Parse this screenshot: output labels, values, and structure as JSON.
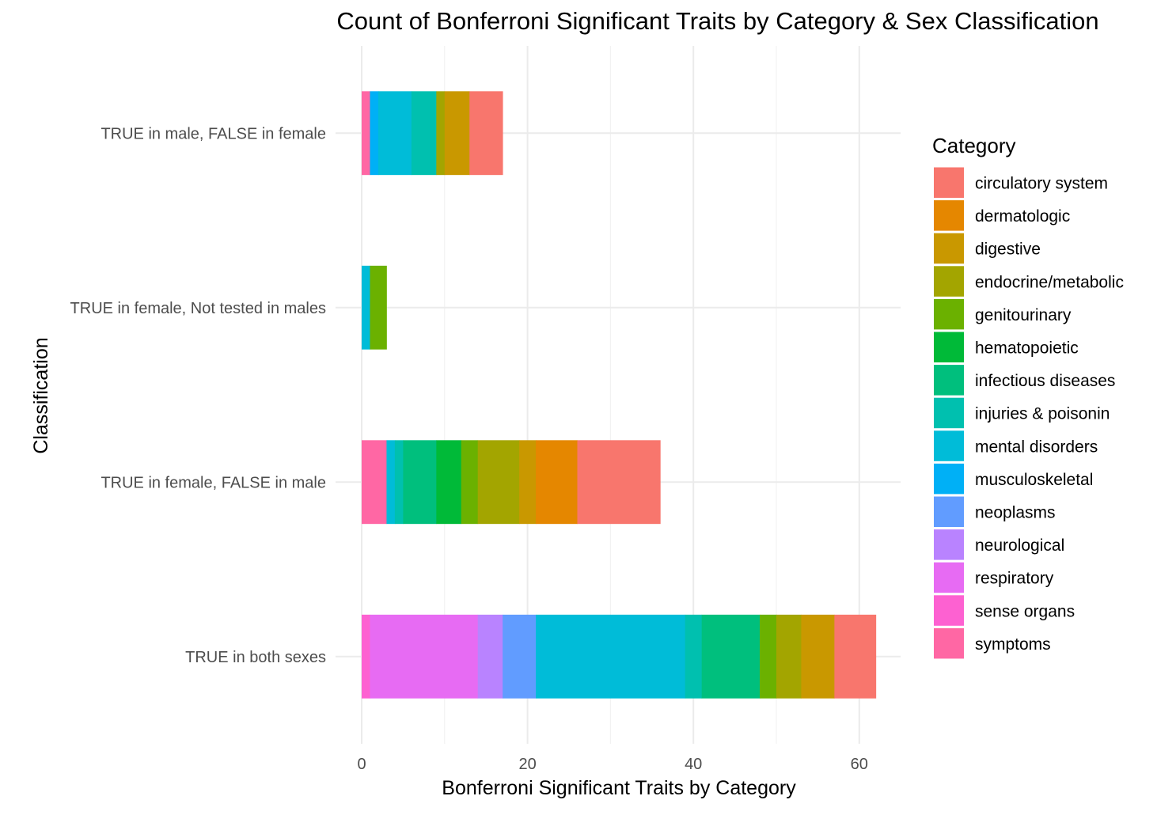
{
  "chart_data": {
    "type": "bar",
    "orientation": "horizontal",
    "stacked": true,
    "title": "Count of Bonferroni Significant Traits by Category & Sex Classification",
    "xlabel": "Bonferroni Significant Traits by Category",
    "ylabel": "Classification",
    "xlim": [
      0,
      65
    ],
    "xticks": [
      0,
      20,
      40,
      60
    ],
    "grid": true,
    "legend_position": "right",
    "legend_title": "Category",
    "categories": [
      "TRUE in male, FALSE in female",
      "TRUE in female, Not tested in males",
      "TRUE in female, FALSE in male",
      "TRUE in both sexes"
    ],
    "series": [
      {
        "name": "circulatory system",
        "color": "#F8766D",
        "values": [
          4,
          0,
          10,
          5
        ]
      },
      {
        "name": "dermatologic",
        "color": "#E58700",
        "values": [
          0,
          0,
          5,
          0
        ]
      },
      {
        "name": "digestive",
        "color": "#C99800",
        "values": [
          3,
          0,
          2,
          4
        ]
      },
      {
        "name": "endocrine/metabolic",
        "color": "#A3A500",
        "values": [
          1,
          0,
          5,
          3
        ]
      },
      {
        "name": "genitourinary",
        "color": "#6BB100",
        "values": [
          0,
          2,
          2,
          2
        ]
      },
      {
        "name": "hematopoietic",
        "color": "#00BA38",
        "values": [
          0,
          0,
          3,
          0
        ]
      },
      {
        "name": "infectious diseases",
        "color": "#00BF7D",
        "values": [
          0,
          0,
          4,
          7
        ]
      },
      {
        "name": "injuries & poisonin",
        "color": "#00C0AF",
        "values": [
          3,
          0,
          1,
          2
        ]
      },
      {
        "name": "mental disorders",
        "color": "#00BCD8",
        "values": [
          4,
          1,
          1,
          18
        ]
      },
      {
        "name": "musculoskeletal",
        "color": "#00B0F6",
        "values": [
          1,
          0,
          0,
          0
        ]
      },
      {
        "name": "neoplasms",
        "color": "#619CFF",
        "values": [
          0,
          0,
          0,
          4
        ]
      },
      {
        "name": "neurological",
        "color": "#B983FF",
        "values": [
          0,
          0,
          0,
          3
        ]
      },
      {
        "name": "respiratory",
        "color": "#E76BF3",
        "values": [
          0,
          0,
          0,
          13
        ]
      },
      {
        "name": "sense organs",
        "color": "#FD61D1",
        "values": [
          0,
          0,
          0,
          1
        ]
      },
      {
        "name": "symptoms",
        "color": "#FF67A4",
        "values": [
          1,
          0,
          3,
          0
        ]
      }
    ]
  }
}
